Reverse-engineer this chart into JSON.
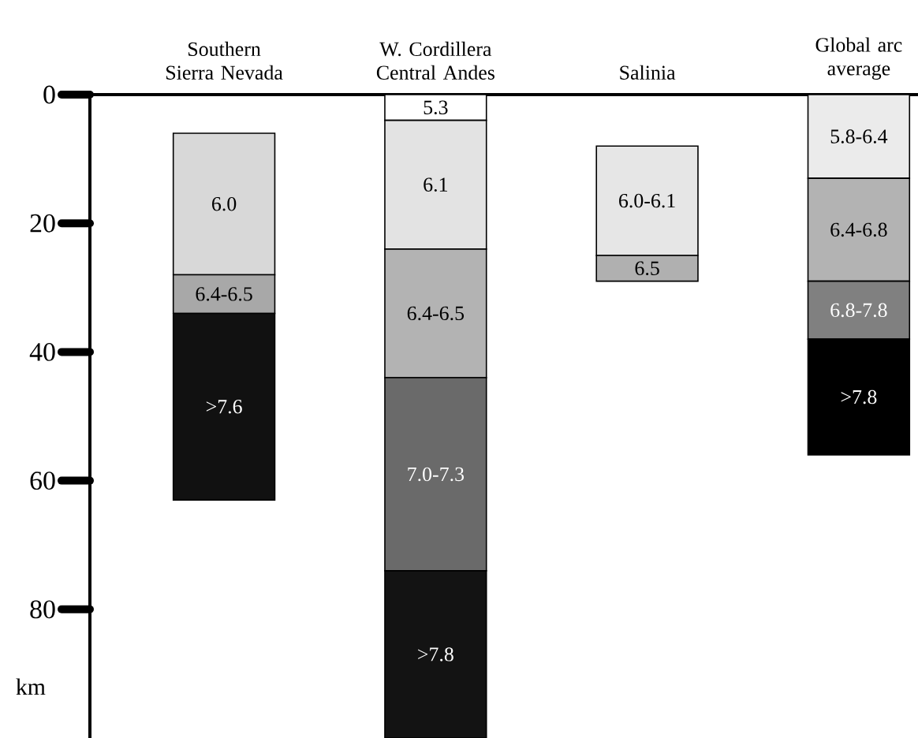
{
  "chart_data": {
    "type": "bar",
    "categories": [
      "Southern Sierra Nevada",
      "W. Cordillera Central Andes",
      "Salinia",
      "Global arc average"
    ],
    "series": [
      {
        "colors": [
          "#d8d8d8",
          "#ffffff",
          "#e6e6e6",
          "#ebebeb"
        ],
        "base": [
          6,
          0,
          8,
          0
        ],
        "values": [
          22,
          4,
          17,
          13
        ]
      },
      {
        "colors": [
          "#a8a8a8",
          "#e3e3e3",
          "#b0b0b0",
          "#b3b3b3"
        ],
        "base": [
          28,
          4,
          25,
          13
        ],
        "values": [
          6,
          20,
          4,
          16
        ]
      },
      {
        "colors": [
          "#111111",
          "#b3b3b3",
          null,
          "#808080"
        ],
        "base": [
          34,
          24,
          null,
          29
        ],
        "values": [
          29,
          20,
          null,
          9
        ]
      },
      {
        "colors": [
          null,
          "#6a6a6a",
          null,
          "#000000"
        ],
        "base": [
          null,
          44,
          null,
          38
        ],
        "values": [
          null,
          30,
          null,
          18
        ]
      },
      {
        "colors": [
          null,
          "#131313",
          null,
          null
        ],
        "base": [
          null,
          74,
          null,
          null
        ],
        "values": [
          null,
          26,
          null,
          null
        ]
      }
    ],
    "ylim": [
      100,
      0
    ],
    "yticks": [
      0,
      20,
      40,
      60,
      80
    ],
    "ylabel": "km",
    "annotations": [
      "6.0",
      "6.4-6.5",
      ">7.6",
      "5.3",
      "6.1",
      "6.4-6.5",
      "7.0-7.3",
      ">7.8",
      "6.0-6.1",
      "6.5",
      "5.8-6.4",
      "6.4-6.8",
      "6.8-7.8",
      ">7.8"
    ]
  }
}
